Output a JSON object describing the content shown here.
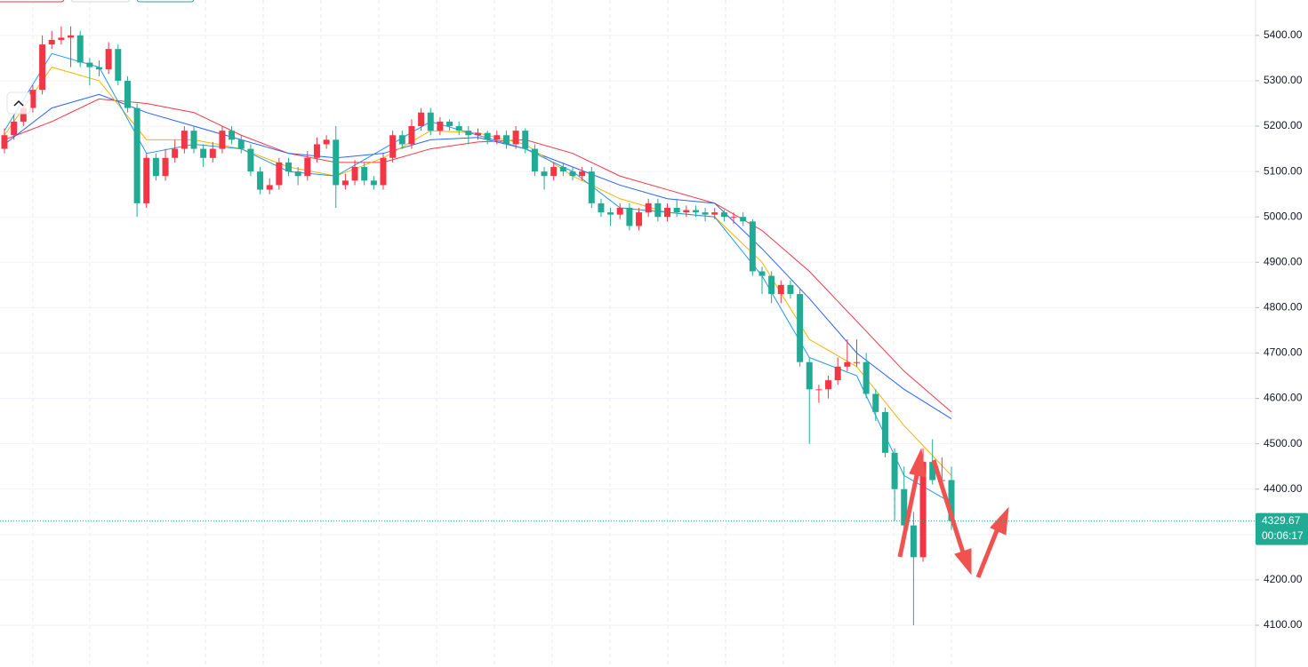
{
  "chart_data": {
    "type": "candlestick",
    "ylim": [
      4008,
      5478
    ],
    "yticks": [
      {
        "value": 4100,
        "label": "4100.00"
      },
      {
        "value": 4200,
        "label": "4200.00"
      },
      {
        "value": 4300,
        "label": "4300.00"
      },
      {
        "value": 4400,
        "label": "4400.00"
      },
      {
        "value": 4500,
        "label": "4500.00"
      },
      {
        "value": 4600,
        "label": "4600.00"
      },
      {
        "value": 4700,
        "label": "4700.00"
      },
      {
        "value": 4800,
        "label": "4800.00"
      },
      {
        "value": 4900,
        "label": "4900.00"
      },
      {
        "value": 5000,
        "label": "5000.00"
      },
      {
        "value": 5100,
        "label": "5100.00"
      },
      {
        "value": 5200,
        "label": "5200.00"
      },
      {
        "value": 5300,
        "label": "5300.00"
      },
      {
        "value": 5400,
        "label": "5400.00"
      }
    ],
    "grid": true,
    "up_color": "#f23645",
    "down_color": "#22ab94",
    "last_price": 4329.67,
    "countdown": "00:06:17",
    "candles": {
      "open": [
        5150,
        5180,
        5210,
        5240,
        5280,
        5380,
        5390,
        5395,
        5400,
        5340,
        5330,
        5325,
        5370,
        5300,
        5240,
        5030,
        5130,
        5090,
        5130,
        5150,
        5190,
        5150,
        5130,
        5150,
        5190,
        5170,
        5150,
        5100,
        5060,
        5070,
        5120,
        5100,
        5090,
        5130,
        5160,
        5170,
        5070,
        5080,
        5110,
        5080,
        5070,
        5130,
        5180,
        5160,
        5200,
        5230,
        5190,
        5210,
        5200,
        5190,
        5180,
        5185,
        5170,
        5180,
        5160,
        5190,
        5150,
        5100,
        5090,
        5110,
        5100,
        5090,
        5100,
        5030,
        5010,
        5005,
        5020,
        4980,
        5010,
        5030,
        5000,
        5020,
        5010,
        5015,
        5010,
        5005,
        5010,
        5000,
        5000,
        4990,
        4880,
        4870,
        4830,
        4850,
        4830,
        4680,
        4620,
        4620,
        4640,
        4670,
        4680,
        4680,
        4610,
        4570,
        4480,
        4400,
        4320,
        4250,
        4460,
        4420,
        4420
      ],
      "high": [
        5195,
        5225,
        5250,
        5290,
        5400,
        5410,
        5420,
        5420,
        5410,
        5350,
        5345,
        5385,
        5380,
        5310,
        5250,
        5140,
        5140,
        5150,
        5170,
        5200,
        5200,
        5160,
        5165,
        5200,
        5200,
        5180,
        5160,
        5110,
        5085,
        5130,
        5130,
        5110,
        5145,
        5175,
        5180,
        5200,
        5095,
        5125,
        5120,
        5090,
        5140,
        5190,
        5190,
        5215,
        5240,
        5240,
        5220,
        5215,
        5210,
        5200,
        5195,
        5190,
        5190,
        5190,
        5200,
        5195,
        5160,
        5110,
        5120,
        5120,
        5110,
        5110,
        5110,
        5040,
        5020,
        5030,
        5030,
        5020,
        5040,
        5040,
        5030,
        5040,
        5025,
        5025,
        5020,
        5020,
        5015,
        5010,
        5010,
        4995,
        4890,
        4880,
        4860,
        4860,
        4840,
        4690,
        4630,
        4650,
        4690,
        4730,
        4730,
        4700,
        4620,
        4580,
        4490,
        4450,
        4350,
        4490,
        4510,
        4470,
        4450
      ],
      "low": [
        5140,
        5170,
        5200,
        5230,
        5270,
        5370,
        5380,
        5330,
        5330,
        5290,
        5310,
        5315,
        5290,
        5230,
        5000,
        5020,
        5080,
        5080,
        5120,
        5140,
        5140,
        5110,
        5120,
        5140,
        5160,
        5140,
        5090,
        5050,
        5050,
        5060,
        5090,
        5070,
        5080,
        5120,
        5150,
        5020,
        5060,
        5070,
        5070,
        5060,
        5060,
        5120,
        5150,
        5150,
        5190,
        5180,
        5180,
        5190,
        5180,
        5160,
        5170,
        5160,
        5160,
        5150,
        5150,
        5140,
        5090,
        5060,
        5080,
        5090,
        5080,
        5080,
        5020,
        5000,
        4980,
        4995,
        4970,
        4970,
        5000,
        4990,
        4990,
        5000,
        5000,
        5000,
        4990,
        4995,
        4990,
        4985,
        4980,
        4870,
        4830,
        4810,
        4810,
        4820,
        4670,
        4500,
        4590,
        4600,
        4630,
        4660,
        4670,
        4600,
        4550,
        4470,
        4330,
        4300,
        4100,
        4240,
        4410,
        4400,
        4310
      ],
      "close": [
        5180,
        5210,
        5240,
        5280,
        5380,
        5390,
        5395,
        5400,
        5340,
        5330,
        5325,
        5370,
        5300,
        5240,
        5030,
        5130,
        5090,
        5130,
        5150,
        5190,
        5150,
        5130,
        5150,
        5190,
        5170,
        5150,
        5100,
        5060,
        5070,
        5120,
        5100,
        5090,
        5130,
        5160,
        5170,
        5070,
        5080,
        5110,
        5080,
        5070,
        5130,
        5180,
        5160,
        5200,
        5230,
        5190,
        5210,
        5200,
        5190,
        5180,
        5185,
        5170,
        5180,
        5160,
        5190,
        5150,
        5100,
        5090,
        5110,
        5100,
        5090,
        5100,
        5030,
        5010,
        5005,
        5020,
        4980,
        5010,
        5030,
        5000,
        5020,
        5010,
        5015,
        5010,
        5005,
        5010,
        5000,
        5000,
        4990,
        4880,
        4870,
        4830,
        4850,
        4830,
        4680,
        4620,
        4620,
        4640,
        4670,
        4680,
        4680,
        4610,
        4570,
        4480,
        4400,
        4320,
        4250,
        4460,
        4420,
        4420,
        4329.67
      ]
    },
    "ma_x": [
      0,
      5,
      10,
      15,
      20,
      25,
      30,
      35,
      40,
      45,
      50,
      55,
      60,
      65,
      70,
      75,
      80,
      85,
      90,
      95,
      100
    ],
    "series": [
      {
        "color": "#f23645",
        "values": [
          5170,
          5210,
          5260,
          5250,
          5230,
          5180,
          5140,
          5120,
          5120,
          5150,
          5165,
          5170,
          5140,
          5090,
          5060,
          5030,
          4970,
          4880,
          4770,
          4660,
          4570
        ]
      },
      {
        "color": "#2962ff",
        "values": [
          5160,
          5240,
          5270,
          5230,
          5200,
          5170,
          5140,
          5130,
          5140,
          5170,
          5175,
          5150,
          5110,
          5070,
          5040,
          5030,
          4930,
          4820,
          4700,
          4620,
          4555
        ]
      },
      {
        "color": "#f5b400",
        "values": [
          5180,
          5330,
          5300,
          5170,
          5170,
          5150,
          5110,
          5090,
          5130,
          5190,
          5185,
          5160,
          5090,
          5040,
          5010,
          5000,
          4900,
          4730,
          4670,
          4540,
          4430
        ]
      },
      {
        "color": "#2196f3",
        "values": [
          5190,
          5360,
          5330,
          5140,
          5160,
          5150,
          5100,
          5090,
          5150,
          5210,
          5180,
          5150,
          5100,
          5020,
          5010,
          5000,
          4870,
          4690,
          4650,
          4430,
          4370
        ]
      }
    ]
  }
}
